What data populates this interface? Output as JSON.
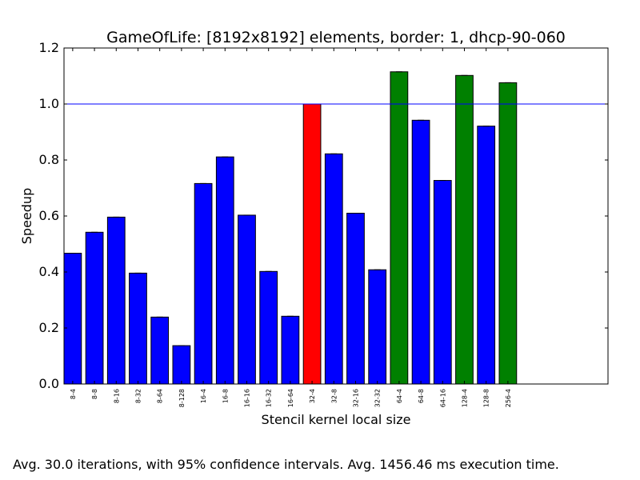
{
  "chart_data": {
    "type": "bar",
    "title": "GameOfLife: [8192x8192] elements, border: 1, dhcp-90-060",
    "xlabel": "Stencil kernel local size",
    "ylabel": "Speedup",
    "ylim": [
      0,
      1.2
    ],
    "yticks": [
      0.0,
      0.2,
      0.4,
      0.6,
      0.8,
      1.0,
      1.2
    ],
    "ytick_labels": [
      "0.0",
      "0.2",
      "0.4",
      "0.6",
      "0.8",
      "1.0",
      "1.2"
    ],
    "reference_line": 1.0,
    "reference_line_color": "#0000ff",
    "categories": [
      "8-4",
      "8-8",
      "8-16",
      "8-32",
      "8-64",
      "8-128",
      "16-4",
      "16-8",
      "16-16",
      "16-32",
      "16-64",
      "32-4",
      "32-8",
      "32-16",
      "32-32",
      "64-4",
      "64-8",
      "64-16",
      "128-4",
      "128-8",
      "256-4"
    ],
    "values": [
      0.467,
      0.542,
      0.596,
      0.396,
      0.239,
      0.137,
      0.716,
      0.811,
      0.603,
      0.402,
      0.242,
      1.0,
      0.822,
      0.61,
      0.408,
      1.115,
      0.942,
      0.727,
      1.102,
      0.921,
      1.076
    ],
    "bar_colors": [
      "#0000ff",
      "#0000ff",
      "#0000ff",
      "#0000ff",
      "#0000ff",
      "#0000ff",
      "#0000ff",
      "#0000ff",
      "#0000ff",
      "#0000ff",
      "#0000ff",
      "#ff0000",
      "#0000ff",
      "#0000ff",
      "#0000ff",
      "#008000",
      "#0000ff",
      "#0000ff",
      "#008000",
      "#0000ff",
      "#008000"
    ],
    "xlim_slots": 25,
    "grid": false,
    "legend": "none"
  },
  "caption": "Avg. 30.0 iterations, with 95% confidence intervals. Avg. 1456.46 ms execution time."
}
